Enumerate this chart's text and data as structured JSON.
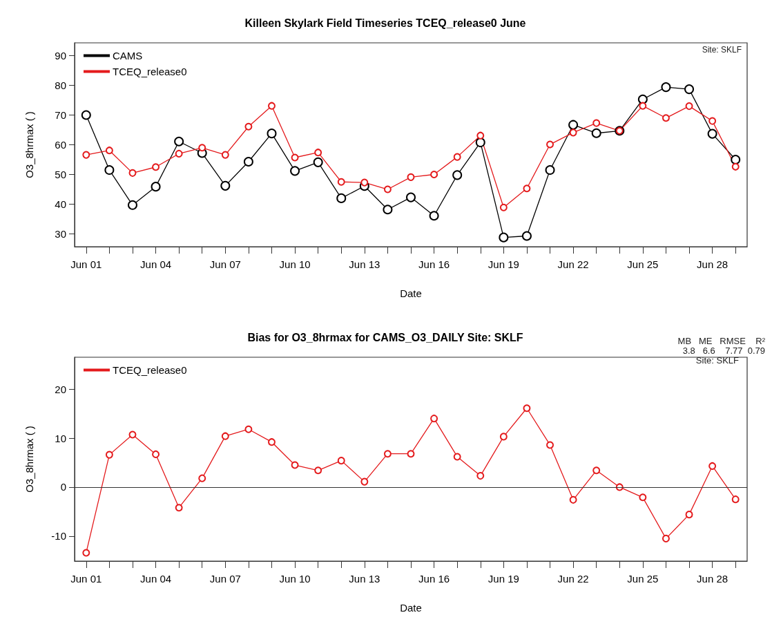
{
  "chart_data": [
    {
      "type": "line",
      "title": "Killeen Skylark Field Timeseries TCEQ_release0 June",
      "xlabel": "Date",
      "ylabel": "O3_8hrmax ( )",
      "categories": [
        "Jun 01",
        null,
        null,
        "Jun 04",
        null,
        null,
        "Jun 07",
        null,
        null,
        "Jun 10",
        null,
        null,
        "Jun 13",
        null,
        null,
        "Jun 16",
        null,
        null,
        "Jun 19",
        null,
        null,
        "Jun 22",
        null,
        null,
        "Jun 25",
        null,
        null,
        "Jun 28",
        null
      ],
      "series": [
        {
          "name": "CAMS",
          "color": "#000000",
          "values": [
            70,
            51.5,
            39.7,
            45.9,
            61.1,
            57.2,
            46.2,
            54.3,
            63.8,
            51.2,
            54.1,
            42,
            46.1,
            38.2,
            42.3,
            36.1,
            49.8,
            60.8,
            28.8,
            29.3,
            51.5,
            66.7,
            63.9,
            64.7,
            75.3,
            79.4,
            78.7,
            63.7,
            55
          ]
        },
        {
          "name": "TCEQ_release0",
          "color": "#e41a1c",
          "values": [
            56.6,
            58.1,
            50.5,
            52.5,
            57,
            59,
            56.6,
            66.1,
            73.1,
            55.7,
            57.4,
            47.5,
            47.3,
            45,
            49.1,
            50,
            55.9,
            63.1,
            38.9,
            45.3,
            60.1,
            64.1,
            67.3,
            64.7,
            73.1,
            69,
            73,
            68,
            52.6
          ]
        }
      ],
      "ylim": [
        25.7,
        94.3
      ],
      "yticks": [
        30,
        40,
        50,
        60,
        70,
        80,
        90
      ],
      "grid": false,
      "legend": "top left",
      "marker": "circle",
      "line_style": "solid",
      "annotations": [
        "Site: SKLF"
      ]
    },
    {
      "type": "line",
      "title": "Bias for O3_8hrmax for CAMS_O3_DAILY Site: SKLF",
      "xlabel": "Date",
      "ylabel": "O3_8hrmax ( )",
      "categories": [
        "Jun 01",
        null,
        null,
        "Jun 04",
        null,
        null,
        "Jun 07",
        null,
        null,
        "Jun 10",
        null,
        null,
        "Jun 13",
        null,
        null,
        "Jun 16",
        null,
        null,
        "Jun 19",
        null,
        null,
        "Jun 22",
        null,
        null,
        "Jun 25",
        null,
        null,
        "Jun 28",
        null
      ],
      "series": [
        {
          "name": "TCEQ_release0",
          "color": "#e41a1c",
          "values": [
            -13.4,
            6.6,
            10.7,
            6.7,
            -4.2,
            1.8,
            10.4,
            11.8,
            9.2,
            4.5,
            3.4,
            5.4,
            1.1,
            6.8,
            6.8,
            14,
            6.2,
            2.3,
            10.3,
            16.1,
            8.6,
            -2.6,
            3.4,
            0,
            -2.1,
            -10.5,
            -5.6,
            4.3,
            -2.5
          ]
        }
      ],
      "ylim": [
        -15.1,
        26.5
      ],
      "yticks": [
        -10,
        0,
        10,
        20
      ],
      "grid": false,
      "legend": "top left",
      "marker": "circle",
      "line_style": "solid",
      "ref_lines": [
        {
          "axis": "y",
          "value": 0,
          "color": "#333333",
          "line_style": "solid"
        }
      ],
      "annotations": [
        "MB   ME   RMSE    R²",
        "3.8   6.6    7.77  0.79",
        "Site: SKLF"
      ]
    }
  ]
}
